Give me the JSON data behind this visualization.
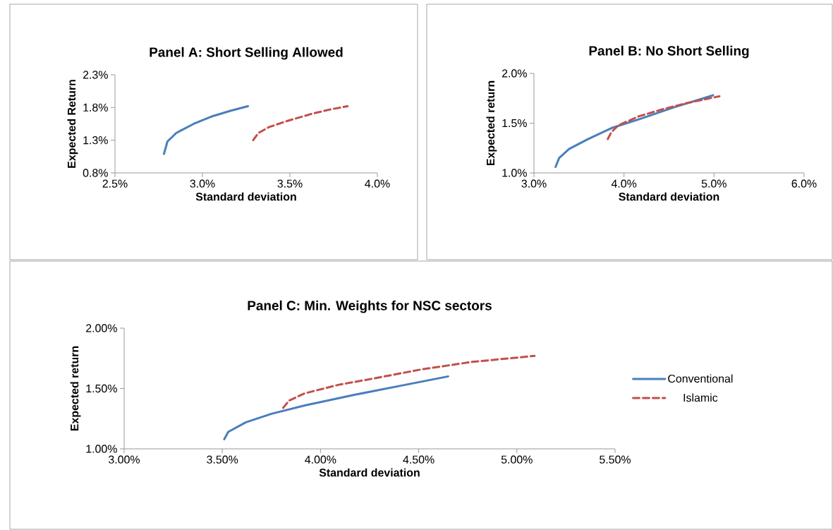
{
  "chart_data": [
    {
      "type": "line",
      "title": "Panel A: Short Selling Allowed",
      "xlabel": "Standard deviation",
      "ylabel": "Expected Return",
      "xlim": [
        2.5,
        4.0
      ],
      "ylim": [
        0.8,
        2.3
      ],
      "xticks": [
        {
          "value": 2.5,
          "label": "2.5%"
        },
        {
          "value": 3.0,
          "label": "3.0%"
        },
        {
          "value": 3.5,
          "label": "3.5%"
        },
        {
          "value": 4.0,
          "label": "4.0%"
        }
      ],
      "yticks": [
        {
          "value": 0.8,
          "label": "0.8%"
        },
        {
          "value": 1.3,
          "label": "1.3%"
        },
        {
          "value": 1.8,
          "label": "1.8%"
        },
        {
          "value": 2.3,
          "label": "2.3%"
        }
      ],
      "series": [
        {
          "color": "#4a7ebb",
          "line_style": "solid",
          "x": [
            2.78,
            2.8,
            2.85,
            2.95,
            3.05,
            3.16,
            3.26
          ],
          "values": [
            1.09,
            1.28,
            1.41,
            1.55,
            1.66,
            1.75,
            1.82
          ]
        },
        {
          "color": "#c0504d",
          "line_style": "dashed",
          "x": [
            3.29,
            3.32,
            3.38,
            3.48,
            3.62,
            3.73,
            3.83
          ],
          "values": [
            1.3,
            1.41,
            1.5,
            1.59,
            1.7,
            1.77,
            1.82
          ]
        }
      ]
    },
    {
      "type": "line",
      "title": "Panel B: No Short Selling",
      "xlabel": "Standard deviation",
      "ylabel": "Expected return",
      "xlim": [
        3.0,
        6.0
      ],
      "ylim": [
        1.0,
        2.0
      ],
      "xticks": [
        {
          "value": 3.0,
          "label": "3.0%"
        },
        {
          "value": 4.0,
          "label": "4.0%"
        },
        {
          "value": 5.0,
          "label": "5.0%"
        },
        {
          "value": 6.0,
          "label": "6.0%"
        }
      ],
      "yticks": [
        {
          "value": 1.0,
          "label": "1.0%"
        },
        {
          "value": 1.5,
          "label": "1.5%"
        },
        {
          "value": 2.0,
          "label": "2.0%"
        }
      ],
      "series": [
        {
          "color": "#4a7ebb",
          "line_style": "solid",
          "x": [
            3.24,
            3.28,
            3.39,
            3.6,
            3.86,
            4.17,
            4.56,
            4.99
          ],
          "values": [
            1.06,
            1.15,
            1.24,
            1.34,
            1.45,
            1.54,
            1.66,
            1.78
          ]
        },
        {
          "color": "#c0504d",
          "line_style": "dashed",
          "x": [
            3.82,
            3.86,
            3.94,
            4.17,
            4.43,
            4.69,
            5.06
          ],
          "values": [
            1.34,
            1.41,
            1.48,
            1.57,
            1.64,
            1.7,
            1.77
          ]
        }
      ]
    },
    {
      "type": "line",
      "title": "Panel C: Min. Weights for NSC sectors",
      "xlabel": "Standard deviation",
      "ylabel": "Expected return",
      "legend": "right",
      "xlim": [
        3.0,
        5.5
      ],
      "ylim": [
        1.0,
        2.0
      ],
      "xticks": [
        {
          "value": 3.0,
          "label": "3.00%"
        },
        {
          "value": 3.5,
          "label": "3.50%"
        },
        {
          "value": 4.0,
          "label": "4.00%"
        },
        {
          "value": 4.5,
          "label": "4.50%"
        },
        {
          "value": 5.0,
          "label": "5.00%"
        },
        {
          "value": 5.5,
          "label": "5.50%"
        }
      ],
      "yticks": [
        {
          "value": 1.0,
          "label": "1.00%"
        },
        {
          "value": 1.5,
          "label": "1.50%"
        },
        {
          "value": 2.0,
          "label": "2.00%"
        }
      ],
      "series": [
        {
          "name": "Conventional",
          "color": "#4a7ebb",
          "line_style": "solid",
          "x": [
            3.51,
            3.53,
            3.62,
            3.75,
            3.92,
            4.18,
            4.43,
            4.65
          ],
          "values": [
            1.08,
            1.14,
            1.22,
            1.29,
            1.36,
            1.45,
            1.53,
            1.6
          ]
        },
        {
          "name": "Islamic",
          "color": "#c0504d",
          "line_style": "dashed",
          "x": [
            3.81,
            3.84,
            3.92,
            4.09,
            4.26,
            4.52,
            4.77,
            5.09
          ],
          "values": [
            1.34,
            1.4,
            1.46,
            1.53,
            1.58,
            1.66,
            1.72,
            1.77
          ]
        }
      ]
    }
  ]
}
